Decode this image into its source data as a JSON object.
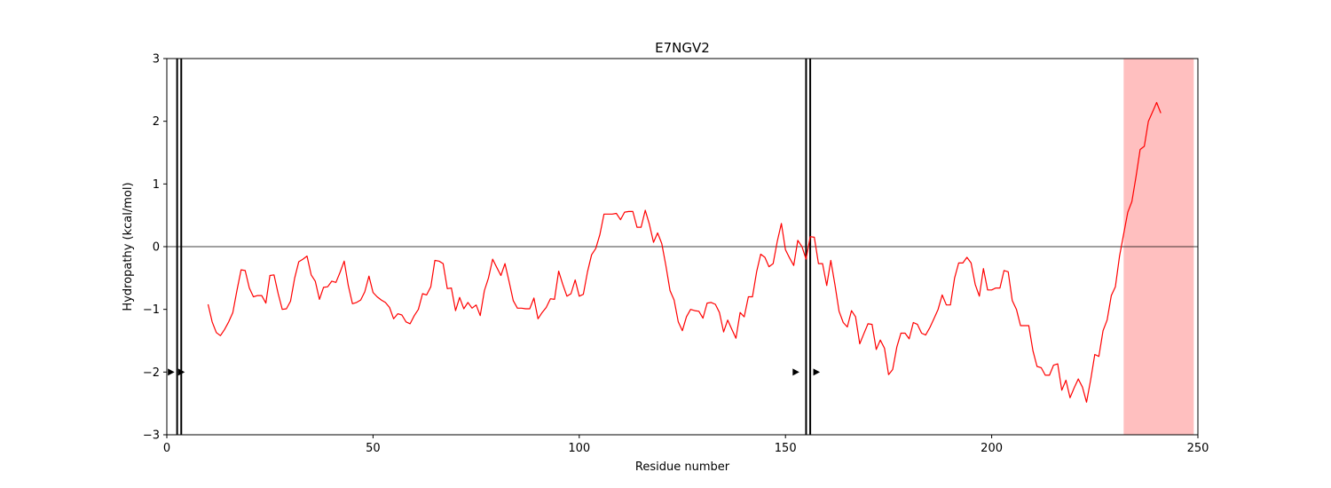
{
  "chart_data": {
    "type": "line",
    "title": "E7NGV2",
    "xlabel": "Residue number",
    "ylabel": "Hydropathy (kcal/mol)",
    "xlim": [
      0,
      250
    ],
    "ylim": [
      -3,
      3
    ],
    "xticks": [
      0,
      50,
      100,
      150,
      200,
      250
    ],
    "yticks": [
      -3,
      -2,
      -1,
      0,
      1,
      2,
      3
    ],
    "ytick_labels": [
      "−3",
      "−2",
      "−1",
      "0",
      "1",
      "2",
      "3"
    ],
    "grid": false,
    "line_color": "#ff0000",
    "shade_color": "#ffbfbf",
    "zero_line": 0,
    "shaded_region": [
      232,
      249
    ],
    "vertical_lines": [
      2.5,
      3.5,
      155,
      156
    ],
    "arrow_markers": [
      {
        "x": 1,
        "y": -2
      },
      {
        "x": 3.5,
        "y": -2
      },
      {
        "x": 152.5,
        "y": -2
      },
      {
        "x": 157.5,
        "y": -2
      }
    ],
    "series": [
      {
        "x": [
          10,
          11,
          12,
          13,
          14,
          15,
          16,
          17,
          18,
          19,
          20,
          21,
          22,
          23,
          24,
          25,
          26,
          27,
          28,
          29,
          30,
          31,
          32,
          33,
          34,
          35,
          36,
          37,
          38,
          39,
          40,
          41,
          42,
          43,
          44,
          45,
          46,
          47,
          48,
          49,
          50,
          51,
          52,
          53,
          54,
          55,
          56,
          57,
          58,
          59,
          60,
          61,
          62,
          63,
          64,
          65,
          66,
          67,
          68,
          69,
          70,
          71,
          72,
          73,
          74,
          75,
          76,
          77,
          78,
          79,
          80,
          81,
          82,
          83,
          84,
          85,
          86,
          87,
          88,
          89,
          90,
          91,
          92,
          93,
          94,
          95,
          96,
          97,
          98,
          99,
          100,
          101,
          102,
          103,
          104,
          105,
          106,
          107,
          108,
          109,
          110,
          111,
          112,
          113,
          114,
          115,
          116,
          117,
          118,
          119,
          120,
          121,
          122,
          123,
          124,
          125,
          126,
          127,
          128,
          129,
          130,
          131,
          132,
          133,
          134,
          135,
          136,
          137,
          138,
          139,
          140,
          141,
          142,
          143,
          144,
          145,
          146,
          147,
          148,
          149,
          150,
          151,
          152,
          153,
          154,
          155,
          156,
          157,
          158,
          159,
          160,
          161,
          162,
          163,
          164,
          165,
          166,
          167,
          168,
          169,
          170,
          171,
          172,
          173,
          174,
          175,
          176,
          177,
          178,
          179,
          180,
          181,
          182,
          183,
          184,
          185,
          186,
          187,
          188,
          189,
          190,
          191,
          192,
          193,
          194,
          195,
          196,
          197,
          198,
          199,
          200,
          201,
          202,
          203,
          204,
          205,
          206,
          207,
          208,
          209,
          210,
          211,
          212,
          213,
          214,
          215,
          216,
          217,
          218,
          219,
          220,
          221,
          222,
          223,
          224,
          225,
          226,
          227,
          228,
          229,
          230,
          231,
          232,
          233,
          234,
          235,
          236,
          237,
          238,
          239,
          240,
          241
        ],
        "values": [
          -0.92,
          -1.2,
          -1.37,
          -1.42,
          -1.32,
          -1.2,
          -1.05,
          -0.7,
          -0.37,
          -0.38,
          -0.66,
          -0.8,
          -0.78,
          -0.78,
          -0.9,
          -0.46,
          -0.45,
          -0.75,
          -1.0,
          -0.99,
          -0.87,
          -0.5,
          -0.24,
          -0.2,
          -0.15,
          -0.45,
          -0.55,
          -0.84,
          -0.65,
          -0.64,
          -0.55,
          -0.57,
          -0.41,
          -0.23,
          -0.62,
          -0.91,
          -0.89,
          -0.85,
          -0.72,
          -0.47,
          -0.73,
          -0.8,
          -0.85,
          -0.89,
          -0.97,
          -1.15,
          -1.07,
          -1.09,
          -1.2,
          -1.23,
          -1.1,
          -1.0,
          -0.75,
          -0.77,
          -0.64,
          -0.22,
          -0.23,
          -0.27,
          -0.67,
          -0.66,
          -1.02,
          -0.81,
          -0.99,
          -0.89,
          -0.98,
          -0.93,
          -1.1,
          -0.7,
          -0.5,
          -0.2,
          -0.33,
          -0.46,
          -0.27,
          -0.56,
          -0.86,
          -0.98,
          -0.98,
          -0.99,
          -0.99,
          -0.82,
          -1.15,
          -1.05,
          -0.97,
          -0.83,
          -0.84,
          -0.39,
          -0.6,
          -0.79,
          -0.75,
          -0.53,
          -0.79,
          -0.76,
          -0.4,
          -0.13,
          -0.03,
          0.19,
          0.52,
          0.52,
          0.52,
          0.53,
          0.43,
          0.55,
          0.56,
          0.56,
          0.31,
          0.31,
          0.58,
          0.36,
          0.07,
          0.22,
          0.05,
          -0.3,
          -0.7,
          -0.85,
          -1.2,
          -1.34,
          -1.12,
          -1.0,
          -1.02,
          -1.03,
          -1.14,
          -0.9,
          -0.89,
          -0.92,
          -1.05,
          -1.36,
          -1.17,
          -1.32,
          -1.46,
          -1.05,
          -1.12,
          -0.8,
          -0.8,
          -0.4,
          -0.12,
          -0.17,
          -0.32,
          -0.27,
          0.08,
          0.37,
          -0.05,
          -0.18,
          -0.3,
          0.1,
          0.0,
          -0.2,
          0.16,
          0.15,
          -0.27,
          -0.27,
          -0.62,
          -0.22,
          -0.61,
          -1.03,
          -1.21,
          -1.28,
          -1.02,
          -1.12,
          -1.55,
          -1.39,
          -1.23,
          -1.24,
          -1.64,
          -1.49,
          -1.62,
          -2.04,
          -1.96,
          -1.6,
          -1.38,
          -1.38,
          -1.47,
          -1.21,
          -1.24,
          -1.38,
          -1.41,
          -1.29,
          -1.15,
          -1.0,
          -0.77,
          -0.93,
          -0.93,
          -0.5,
          -0.26,
          -0.26,
          -0.17,
          -0.26,
          -0.6,
          -0.79,
          -0.35,
          -0.69,
          -0.69,
          -0.66,
          -0.66,
          -0.38,
          -0.4,
          -0.86,
          -1.0,
          -1.26,
          -1.26,
          -1.26,
          -1.66,
          -1.91,
          -1.93,
          -2.05,
          -2.05,
          -1.89,
          -1.87,
          -2.29,
          -2.13,
          -2.41,
          -2.25,
          -2.11,
          -2.24,
          -2.48,
          -2.12,
          -1.72,
          -1.75,
          -1.34,
          -1.17,
          -0.78,
          -0.64,
          -0.15,
          0.2,
          0.55,
          0.72,
          1.12,
          1.55,
          1.6,
          2.0,
          2.15,
          2.3,
          2.13
        ]
      }
    ]
  }
}
